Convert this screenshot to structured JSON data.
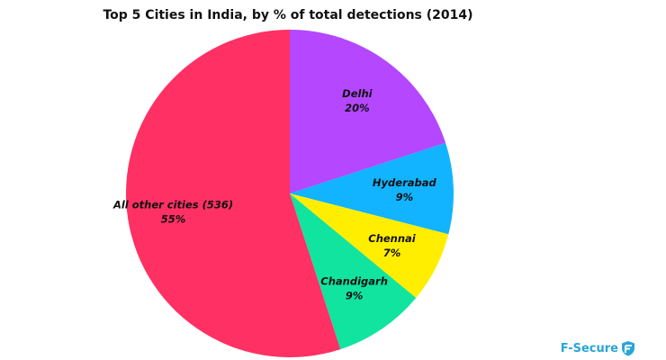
{
  "chart_data": {
    "type": "pie",
    "title": "Top 5 Cities in India, by % of total detections (2014)",
    "slices": [
      {
        "label": "Delhi",
        "value": 20,
        "display": "20%",
        "color": "#b447ff"
      },
      {
        "label": "Hyderabad",
        "value": 9,
        "display": "9%",
        "color": "#12b3ff"
      },
      {
        "label": "Chennai",
        "value": 7,
        "display": "7%",
        "color": "#ffee00"
      },
      {
        "label": "Chandigarh",
        "value": 9,
        "display": "9%",
        "color": "#11e49f"
      },
      {
        "label": "All other cities (536)",
        "value": 55,
        "display": "55%",
        "color": "#ff3063"
      }
    ],
    "start_angle_deg": 0,
    "direction": "clockwise"
  },
  "brand": {
    "name": "F-Secure",
    "color": "#2aa5d8",
    "icon": "f-secure-logo-icon"
  }
}
